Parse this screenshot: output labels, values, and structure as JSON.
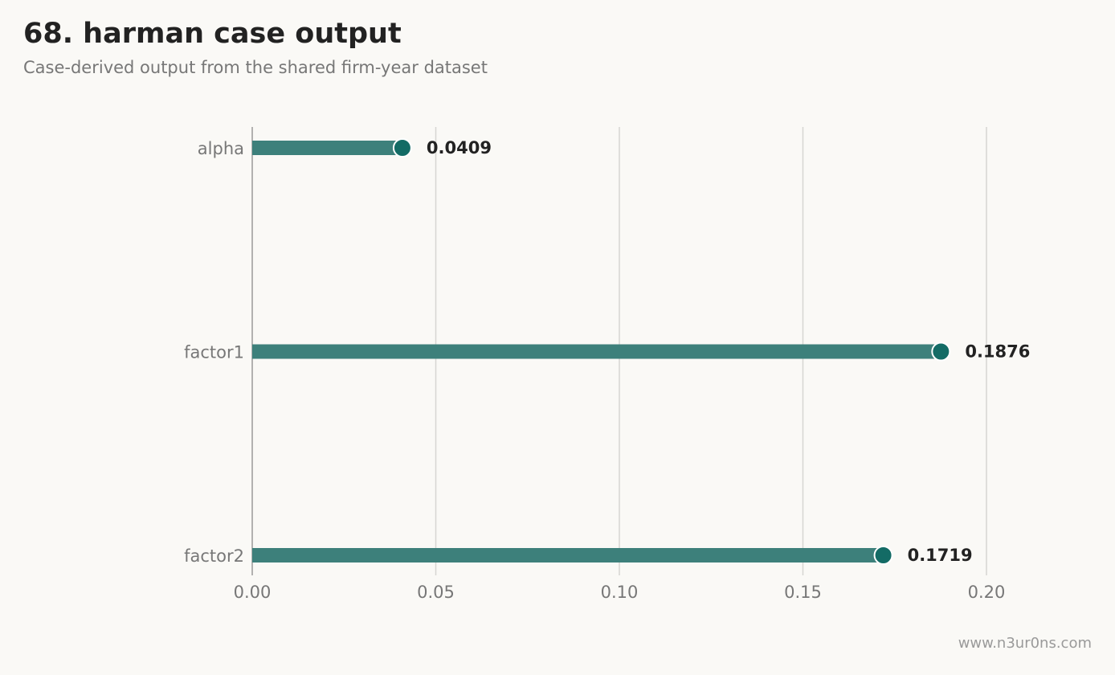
{
  "title": "68. harman case output",
  "subtitle": "Case-derived output from the shared firm-year dataset",
  "footer": "www.n3ur0ns.com",
  "colors": {
    "background": "#faf9f6",
    "bar": "#3d807b",
    "dot": "#136b65",
    "grid": "#d6d6d2",
    "axis": "#999999"
  },
  "chart_data": {
    "type": "bar",
    "orientation": "horizontal",
    "style": "lollipop",
    "categories": [
      "alpha",
      "factor1",
      "factor2"
    ],
    "values": [
      0.0409,
      0.1876,
      0.1719
    ],
    "value_labels": [
      "0.0409",
      "0.1876",
      "0.1719"
    ],
    "xlim": [
      0,
      0.2
    ],
    "xticks": [
      0,
      0.05,
      0.1,
      0.15,
      0.2
    ],
    "xtick_labels": [
      "0.00",
      "0.05",
      "0.10",
      "0.15",
      "0.20"
    ],
    "xlabel": "",
    "ylabel": "",
    "grid": "vertical"
  }
}
